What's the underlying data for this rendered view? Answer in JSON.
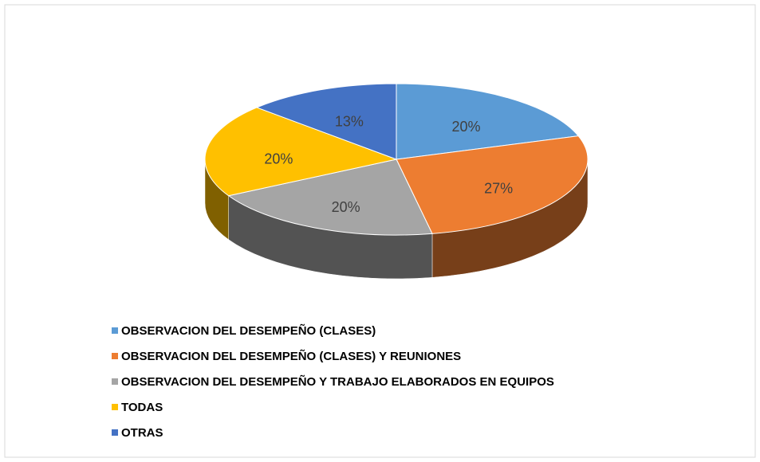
{
  "chart_data": {
    "type": "pie3d",
    "categories": [
      "OBSERVACION DEL DESEMPEÑO (CLASES)",
      "OBSERVACION DEL DESEMPEÑO (CLASES) Y REUNIONES",
      "OBSERVACION DEL DESEMPEÑO Y TRABAJO ELABORADOS EN EQUIPOS",
      "TODAS",
      "OTRAS"
    ],
    "values": [
      20,
      27,
      20,
      20,
      13
    ],
    "value_labels": [
      "20%",
      "27%",
      "20%",
      "20%",
      "13%"
    ],
    "colors": [
      "#5b9bd5",
      "#ed7d31",
      "#a5a5a5",
      "#ffc000",
      "#4472c4"
    ],
    "legend": "bottom-left"
  }
}
